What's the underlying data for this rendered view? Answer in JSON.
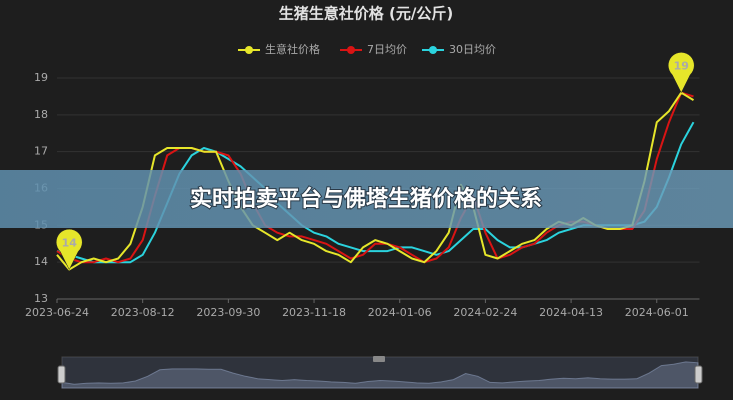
{
  "overlay_title": "实时拍卖平台与佛塔生猪价格的关系",
  "chart_data": {
    "type": "line",
    "title": "生猪生意社价格 (元/公斤)",
    "categories": [
      "2023-06-24",
      null,
      null,
      null,
      null,
      null,
      null,
      "2023-08-12",
      null,
      null,
      null,
      null,
      null,
      null,
      "2023-09-30",
      null,
      null,
      null,
      null,
      null,
      null,
      "2023-11-18",
      null,
      null,
      null,
      null,
      null,
      null,
      "2024-01-06",
      null,
      null,
      null,
      null,
      null,
      null,
      "2024-02-24",
      null,
      null,
      null,
      null,
      null,
      null,
      "2024-04-13",
      null,
      null,
      null,
      null,
      null,
      null,
      "2024-06-01",
      null,
      null,
      null
    ],
    "series": [
      {
        "name": "生意社价格",
        "color": "#e6e62a",
        "values": [
          14.2,
          13.8,
          14.0,
          14.1,
          14.0,
          14.1,
          14.5,
          15.5,
          16.9,
          17.1,
          17.1,
          17.1,
          17.0,
          17.0,
          16.2,
          15.5,
          15.0,
          14.8,
          14.6,
          14.8,
          14.6,
          14.5,
          14.3,
          14.2,
          14.0,
          14.4,
          14.6,
          14.5,
          14.3,
          14.1,
          14.0,
          14.3,
          14.8,
          16.1,
          15.5,
          14.2,
          14.1,
          14.3,
          14.5,
          14.6,
          14.9,
          15.1,
          15.0,
          15.2,
          15.0,
          14.9,
          14.9,
          15.0,
          16.2,
          17.8,
          18.1,
          18.6,
          18.4
        ],
        "value_labels": [
          null,
          "14",
          null,
          null,
          null,
          null,
          null,
          null,
          null,
          null,
          null,
          null,
          null,
          null,
          null,
          null,
          null,
          null,
          null,
          null,
          null,
          null,
          null,
          null,
          null,
          null,
          null,
          null,
          null,
          null,
          null,
          null,
          null,
          null,
          null,
          null,
          null,
          null,
          null,
          null,
          null,
          null,
          null,
          null,
          null,
          null,
          null,
          null,
          null,
          null,
          null,
          "19",
          null
        ]
      },
      {
        "name": "7日均价",
        "color": "#d91414",
        "values": [
          14.3,
          14.1,
          14.0,
          14.0,
          14.1,
          14.0,
          14.1,
          14.6,
          15.8,
          16.9,
          17.1,
          17.1,
          17.0,
          17.0,
          16.9,
          16.4,
          15.6,
          15.0,
          14.8,
          14.7,
          14.7,
          14.6,
          14.5,
          14.3,
          14.1,
          14.2,
          14.5,
          14.5,
          14.4,
          14.2,
          14.0,
          14.1,
          14.4,
          15.2,
          15.8,
          14.8,
          14.1,
          14.2,
          14.4,
          14.5,
          14.8,
          15.0,
          15.1,
          15.1,
          15.0,
          14.9,
          14.9,
          14.9,
          15.4,
          16.8,
          17.8,
          18.6,
          18.5
        ]
      },
      {
        "name": "30日均价",
        "color": "#2bd3de",
        "values": [
          14.3,
          14.2,
          14.1,
          14.0,
          14.0,
          14.0,
          14.0,
          14.2,
          14.8,
          15.6,
          16.4,
          16.9,
          17.1,
          17.0,
          16.8,
          16.6,
          16.3,
          16.0,
          15.6,
          15.3,
          15.0,
          14.8,
          14.7,
          14.5,
          14.4,
          14.3,
          14.3,
          14.3,
          14.4,
          14.4,
          14.3,
          14.2,
          14.3,
          14.6,
          14.9,
          14.9,
          14.6,
          14.4,
          14.4,
          14.5,
          14.6,
          14.8,
          14.9,
          15.0,
          15.0,
          15.0,
          15.0,
          15.0,
          15.1,
          15.5,
          16.3,
          17.2,
          17.8
        ]
      }
    ],
    "ylim": [
      13,
      19
    ],
    "yticks": [
      13,
      14,
      15,
      16,
      17,
      18,
      19
    ],
    "grid": true
  }
}
